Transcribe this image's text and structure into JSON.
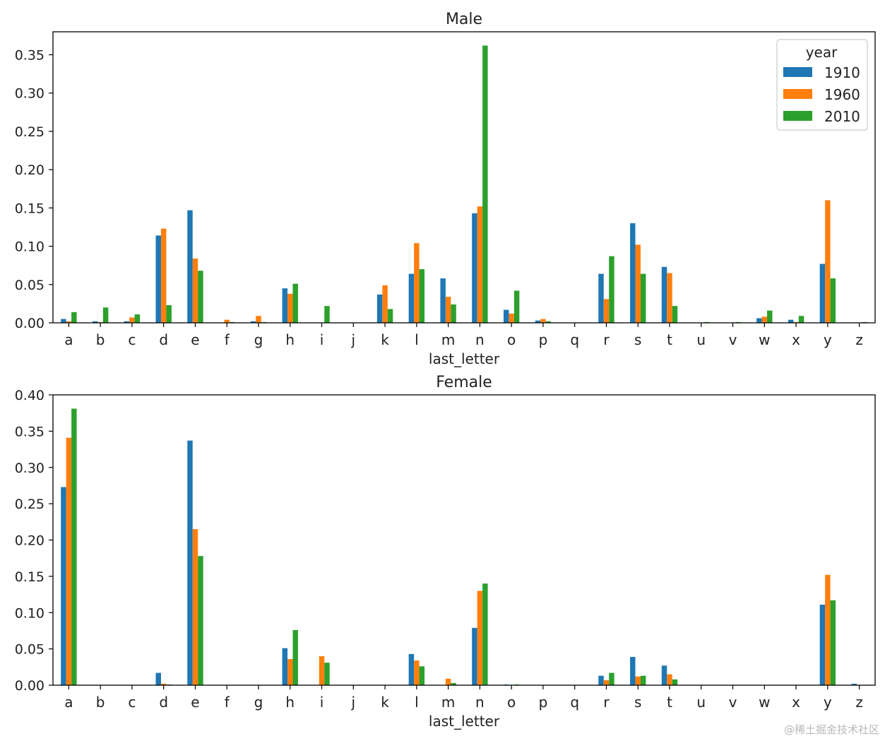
{
  "watermark": "@稀土掘金技术社区",
  "colors": {
    "1910": "#1f77b4",
    "1960": "#ff7f0e",
    "2010": "#2ca02c"
  },
  "chart_data": [
    {
      "type": "bar",
      "title": "Male",
      "xlabel": "last_letter",
      "ylabel": "",
      "ylim": [
        0,
        0.38
      ],
      "yticks": [
        0.0,
        0.05,
        0.1,
        0.15,
        0.2,
        0.25,
        0.3,
        0.35
      ],
      "ytick_labels": [
        "0.00",
        "0.05",
        "0.10",
        "0.15",
        "0.20",
        "0.25",
        "0.30",
        "0.35"
      ],
      "legend": {
        "title": "year",
        "location": "top-right"
      },
      "categories": [
        "a",
        "b",
        "c",
        "d",
        "e",
        "f",
        "g",
        "h",
        "i",
        "j",
        "k",
        "l",
        "m",
        "n",
        "o",
        "p",
        "q",
        "r",
        "s",
        "t",
        "u",
        "v",
        "w",
        "x",
        "y",
        "z"
      ],
      "series": [
        {
          "name": "1910",
          "values": [
            0.005,
            0.002,
            0.002,
            0.114,
            0.147,
            0.0,
            0.002,
            0.045,
            0.0,
            0.0,
            0.037,
            0.064,
            0.058,
            0.143,
            0.017,
            0.003,
            0.0,
            0.064,
            0.13,
            0.073,
            0.0,
            0.0,
            0.006,
            0.004,
            0.077,
            0.0
          ]
        },
        {
          "name": "1960",
          "values": [
            0.002,
            0.001,
            0.007,
            0.123,
            0.084,
            0.004,
            0.009,
            0.038,
            0.0,
            0.0,
            0.049,
            0.104,
            0.034,
            0.152,
            0.012,
            0.005,
            0.0,
            0.031,
            0.102,
            0.065,
            0.0,
            0.0,
            0.008,
            0.001,
            0.16,
            0.0
          ]
        },
        {
          "name": "2010",
          "values": [
            0.014,
            0.02,
            0.011,
            0.023,
            0.068,
            0.001,
            0.001,
            0.051,
            0.022,
            0.0,
            0.018,
            0.07,
            0.024,
            0.362,
            0.042,
            0.002,
            0.0,
            0.087,
            0.064,
            0.022,
            0.001,
            0.001,
            0.016,
            0.009,
            0.058,
            0.001
          ]
        }
      ]
    },
    {
      "type": "bar",
      "title": "Female",
      "xlabel": "last_letter",
      "ylabel": "",
      "ylim": [
        0,
        0.4
      ],
      "yticks": [
        0.0,
        0.05,
        0.1,
        0.15,
        0.2,
        0.25,
        0.3,
        0.35,
        0.4
      ],
      "ytick_labels": [
        "0.00",
        "0.05",
        "0.10",
        "0.15",
        "0.20",
        "0.25",
        "0.30",
        "0.35",
        "0.40"
      ],
      "categories": [
        "a",
        "b",
        "c",
        "d",
        "e",
        "f",
        "g",
        "h",
        "i",
        "j",
        "k",
        "l",
        "m",
        "n",
        "o",
        "p",
        "q",
        "r",
        "s",
        "t",
        "u",
        "v",
        "w",
        "x",
        "y",
        "z"
      ],
      "series": [
        {
          "name": "1910",
          "values": [
            0.273,
            0.0,
            0.0,
            0.017,
            0.337,
            0.0,
            0.0,
            0.051,
            0.0,
            0.0,
            0.0,
            0.043,
            0.0,
            0.079,
            0.001,
            0.0,
            0.0,
            0.013,
            0.039,
            0.027,
            0.0,
            0.0,
            0.0,
            0.0,
            0.111,
            0.002
          ]
        },
        {
          "name": "1960",
          "values": [
            0.341,
            0.0,
            0.0,
            0.002,
            0.215,
            0.0,
            0.0,
            0.036,
            0.04,
            0.0,
            0.0,
            0.034,
            0.009,
            0.13,
            0.0,
            0.0,
            0.0,
            0.007,
            0.012,
            0.015,
            0.0,
            0.0,
            0.0,
            0.0,
            0.152,
            0.0
          ]
        },
        {
          "name": "2010",
          "values": [
            0.381,
            0.0,
            0.0,
            0.001,
            0.178,
            0.0,
            0.0,
            0.076,
            0.031,
            0.0,
            0.0,
            0.026,
            0.003,
            0.14,
            0.001,
            0.0,
            0.0,
            0.017,
            0.013,
            0.008,
            0.0,
            0.0,
            0.0,
            0.0,
            0.117,
            0.0
          ]
        }
      ]
    }
  ]
}
